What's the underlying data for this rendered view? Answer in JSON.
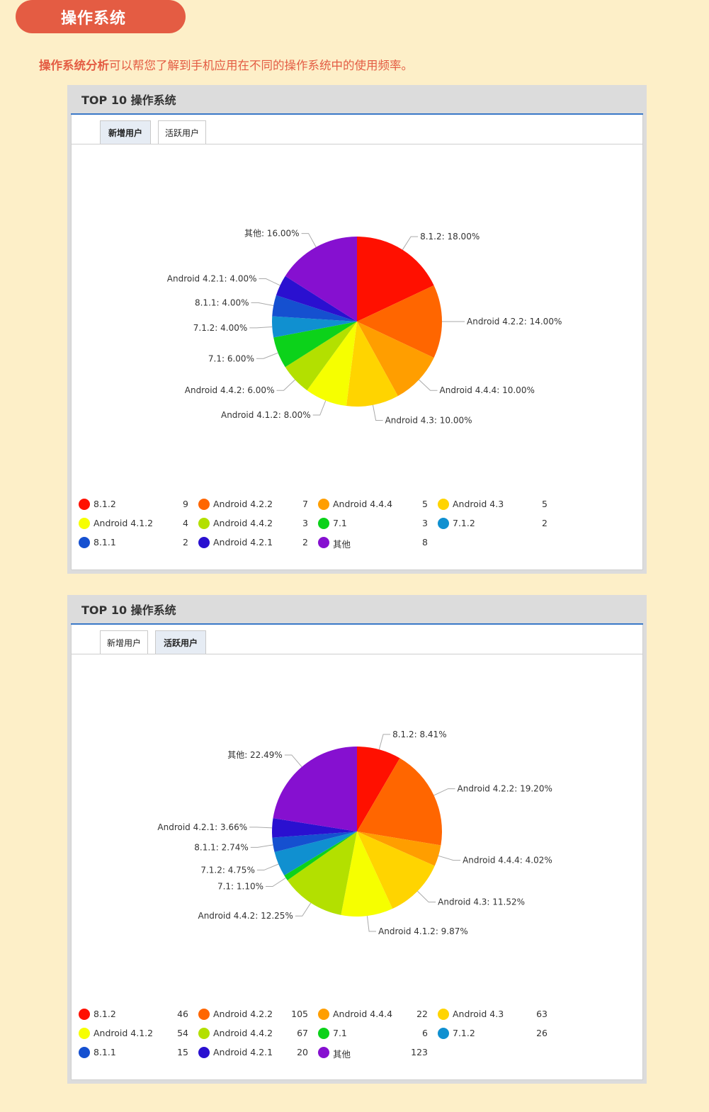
{
  "header": {
    "title": "操作系统"
  },
  "intro": {
    "highlight": "操作系统分析",
    "text": "可以帮您了解到手机应用在不同的操作系统中的使用频率。"
  },
  "colors": {
    "8.1.2": "#ff1000",
    "Android 4.2.2": "#ff6600",
    "Android 4.4.4": "#ff9e00",
    "Android 4.3": "#ffd400",
    "Android 4.1.2": "#f6ff00",
    "Android 4.4.2": "#b3e000",
    "7.1": "#0cd21a",
    "7.1.2": "#1090d0",
    "8.1.1": "#1550d0",
    "Android 4.2.1": "#2a10d0",
    "其他": "#8610d0"
  },
  "panels": [
    {
      "title": "TOP 10 操作系统",
      "tabs": [
        {
          "label": "新增用户",
          "active": true
        },
        {
          "label": "活跃用户",
          "active": false
        }
      ],
      "chart_data": {
        "type": "pie",
        "categories": [
          "8.1.2",
          "Android 4.2.2",
          "Android 4.4.4",
          "Android 4.3",
          "Android 4.1.2",
          "Android 4.4.2",
          "7.1",
          "7.1.2",
          "8.1.1",
          "Android 4.2.1",
          "其他"
        ],
        "values": [
          9,
          7,
          5,
          5,
          4,
          3,
          3,
          2,
          2,
          2,
          8
        ],
        "data_labels": [
          "8.1.2: 18.00%",
          "Android 4.2.2: 14.00%",
          "Android 4.4.4: 10.00%",
          "Android 4.3: 10.00%",
          "Android 4.1.2: 8.00%",
          "Android 4.4.2: 6.00%",
          "7.1: 6.00%",
          "7.1.2: 4.00%",
          "8.1.1: 4.00%",
          "Android 4.2.1: 4.00%",
          "其他: 16.00%"
        ],
        "legend_values": [
          "9",
          "7",
          "5",
          "5",
          "4",
          "3",
          "3",
          "2",
          "2",
          "2",
          "8"
        ],
        "legend": "bottom"
      }
    },
    {
      "title": "TOP 10 操作系统",
      "tabs": [
        {
          "label": "新增用户",
          "active": false
        },
        {
          "label": "活跃用户",
          "active": true
        }
      ],
      "chart_data": {
        "type": "pie",
        "categories": [
          "8.1.2",
          "Android 4.2.2",
          "Android 4.4.4",
          "Android 4.3",
          "Android 4.1.2",
          "Android 4.4.2",
          "7.1",
          "7.1.2",
          "8.1.1",
          "Android 4.2.1",
          "其他"
        ],
        "values": [
          46,
          105,
          22,
          63,
          54,
          67,
          6,
          26,
          15,
          20,
          123
        ],
        "data_labels": [
          "8.1.2: 8.41%",
          "Android 4.2.2: 19.20%",
          "Android 4.4.4: 4.02%",
          "Android 4.3: 11.52%",
          "Android 4.1.2: 9.87%",
          "Android 4.4.2: 12.25%",
          "7.1: 1.10%",
          "7.1.2: 4.75%",
          "8.1.1: 2.74%",
          "Android 4.2.1: 3.66%",
          "其他: 22.49%"
        ],
        "legend_values": [
          "46",
          "105",
          "22",
          "63",
          "54",
          "67",
          "6",
          "26",
          "15",
          "20",
          "123"
        ],
        "legend": "bottom"
      }
    }
  ]
}
